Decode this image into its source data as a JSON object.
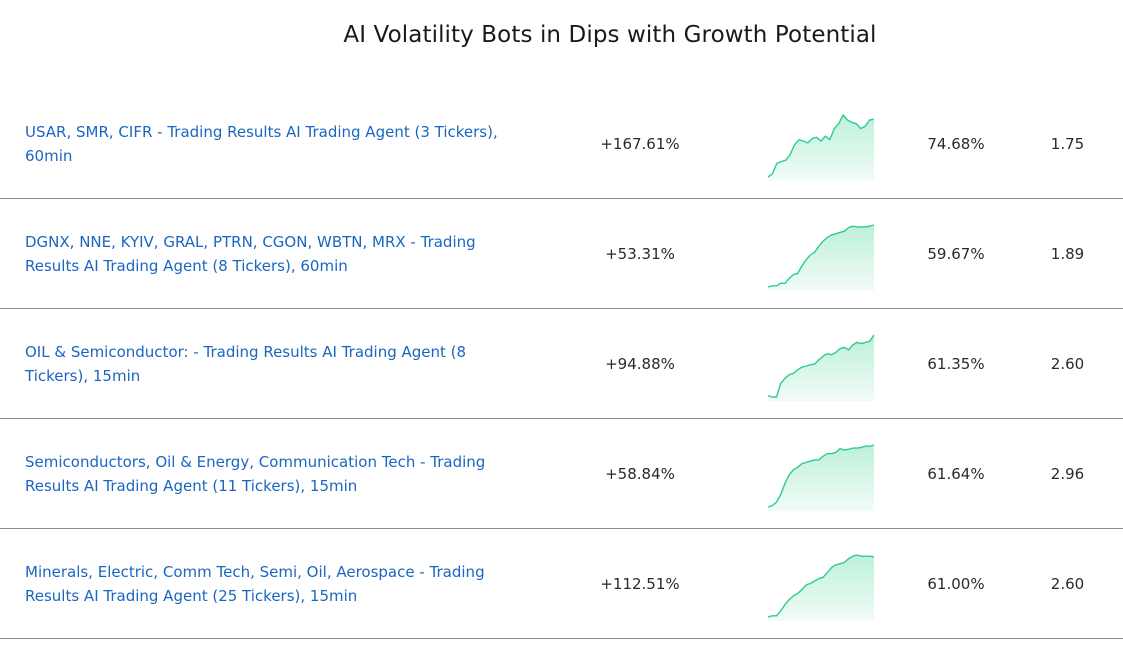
{
  "page": {
    "title": "AI Volatility Bots in Dips with Growth Potential"
  },
  "colors": {
    "link": "#1a66c2",
    "spark_line": "#2ecc8f",
    "spark_fill_top": "#bdf0d9",
    "spark_fill_bottom": "#f2fcf7",
    "divider": "#8a8a8a"
  },
  "rows": [
    {
      "name": "USAR, SMR, CIFR - Trading Results AI Trading Agent (3 Tickers), 60min",
      "return": "+167.61%",
      "win_rate": "74.68%",
      "profit_factor": "1.75",
      "spark": [
        0.0,
        0.05,
        0.22,
        0.25,
        0.27,
        0.36,
        0.52,
        0.6,
        0.58,
        0.55,
        0.62,
        0.64,
        0.58,
        0.66,
        0.6,
        0.78,
        0.86,
        1.0,
        0.92,
        0.88,
        0.86,
        0.78,
        0.82,
        0.92,
        0.93
      ]
    },
    {
      "name": "DGNX, NNE, KYIV, GRAL, PTRN, CGON, WBTN, MRX - Trading Results AI Trading Agent (8 Tickers), 60min",
      "return": "+53.31%",
      "win_rate": "59.67%",
      "profit_factor": "1.89",
      "spark": [
        0.0,
        0.02,
        0.02,
        0.06,
        0.06,
        0.14,
        0.2,
        0.22,
        0.34,
        0.44,
        0.52,
        0.56,
        0.66,
        0.74,
        0.8,
        0.84,
        0.86,
        0.88,
        0.9,
        0.96,
        0.98,
        0.97,
        0.97,
        0.97,
        0.98,
        1.0
      ]
    },
    {
      "name": "OIL & Semiconductor: - Trading Results AI Trading Agent (8 Tickers), 15min",
      "return": "+94.88%",
      "win_rate": "61.35%",
      "profit_factor": "2.60",
      "spark": [
        0.02,
        0.0,
        0.0,
        0.22,
        0.3,
        0.36,
        0.38,
        0.44,
        0.48,
        0.5,
        0.52,
        0.53,
        0.6,
        0.66,
        0.7,
        0.68,
        0.72,
        0.78,
        0.8,
        0.76,
        0.84,
        0.88,
        0.86,
        0.88,
        0.9,
        1.0
      ]
    },
    {
      "name": "Semiconductors, Oil & Energy, Communication Tech - Trading Results AI Trading Agent (11 Tickers), 15min",
      "return": "+58.84%",
      "win_rate": "61.64%",
      "profit_factor": "2.96",
      "spark": [
        0.0,
        0.02,
        0.08,
        0.2,
        0.38,
        0.52,
        0.6,
        0.64,
        0.7,
        0.72,
        0.74,
        0.76,
        0.76,
        0.82,
        0.86,
        0.86,
        0.88,
        0.94,
        0.92,
        0.93,
        0.95,
        0.95,
        0.96,
        0.98,
        0.98,
        1.0
      ]
    },
    {
      "name": "Minerals, Electric, Comm Tech, Semi, Oil, Aerospace - Trading Results AI Trading Agent (25 Tickers), 15min",
      "return": "+112.51%",
      "win_rate": "61.00%",
      "profit_factor": "2.60",
      "spark": [
        0.0,
        0.02,
        0.02,
        0.1,
        0.2,
        0.28,
        0.34,
        0.38,
        0.44,
        0.52,
        0.54,
        0.58,
        0.62,
        0.64,
        0.72,
        0.8,
        0.84,
        0.86,
        0.88,
        0.94,
        0.98,
        1.0,
        0.98,
        0.98,
        0.98,
        0.97
      ]
    }
  ]
}
